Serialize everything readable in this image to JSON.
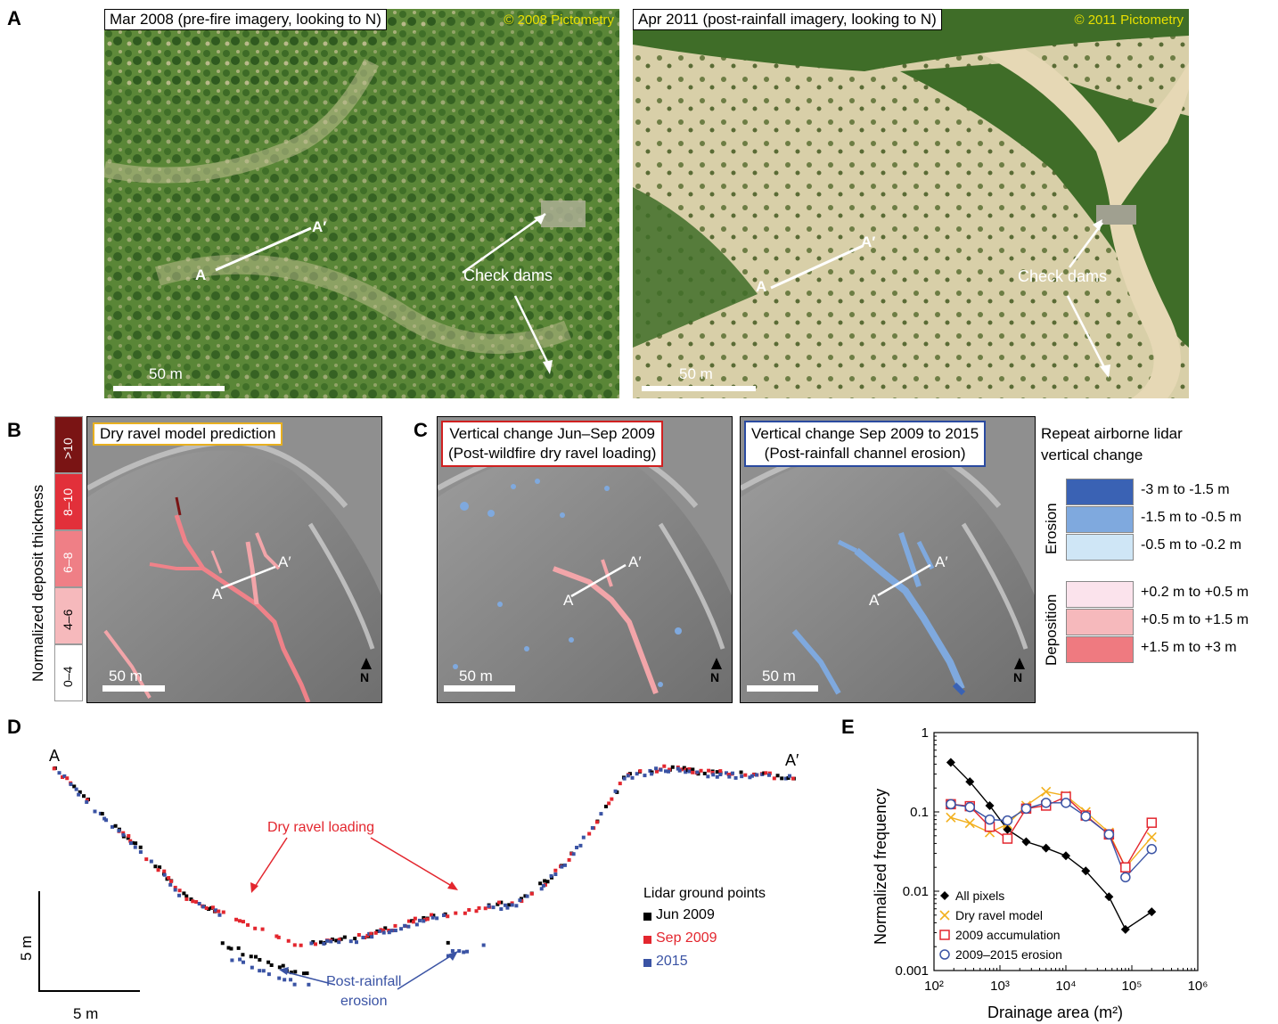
{
  "panel_labels": {
    "a": "A",
    "b": "B",
    "c": "C",
    "d": "D",
    "e": "E"
  },
  "panel_a": {
    "left": {
      "caption": "Mar 2008 (pre-fire imagery, looking to N)",
      "credit": "© 2008 Pictometry",
      "label_a": "A",
      "label_a2": "A′",
      "dams": "Check dams",
      "scale": "50 m"
    },
    "right": {
      "caption": "Apr 2011 (post-rainfall imagery, looking to N)",
      "credit": "© 2011 Pictometry",
      "label_a": "A",
      "label_a2": "A′",
      "dams": "Check dams",
      "scale": "50 m"
    }
  },
  "panel_b": {
    "colorbar_title": "Normalized deposit thickness",
    "colorbar": [
      {
        "label": ">10",
        "color": "#7a1414"
      },
      {
        "label": "8–10",
        "color": "#e2303a"
      },
      {
        "label": "6–8",
        "color": "#ef7f86"
      },
      {
        "label": "4–6",
        "color": "#f6b9bc"
      },
      {
        "label": "0–4",
        "color": "#ffffff"
      }
    ],
    "caption": "Dry ravel model prediction",
    "label_a": "A",
    "label_a2": "A′",
    "scale": "50 m",
    "north": "N"
  },
  "panel_c": {
    "left": {
      "caption_1": "Vertical change Jun–Sep 2009",
      "caption_2": "(Post-wildfire dry ravel loading)",
      "label_a": "A",
      "label_a2": "A′",
      "scale": "50 m",
      "north": "N"
    },
    "right": {
      "caption_1": "Vertical change Sep 2009 to 2015",
      "caption_2": "(Post-rainfall channel erosion)",
      "label_a": "A",
      "label_a2": "A′",
      "scale": "50 m",
      "north": "N"
    },
    "legend": {
      "title_1": "Repeat airborne lidar",
      "title_2": "vertical change",
      "erosion_label": "Erosion",
      "deposition_label": "Deposition",
      "erosion": [
        {
          "label": "-3 m to -1.5 m",
          "color": "#3a62b4"
        },
        {
          "label": "-1.5 m to -0.5 m",
          "color": "#7fa9de"
        },
        {
          "label": "-0.5 m to -0.2 m",
          "color": "#cfe6f6"
        }
      ],
      "deposition": [
        {
          "label": "+0.2 m to +0.5 m",
          "color": "#fbe3ec"
        },
        {
          "label": "+0.5 m to +1.5 m",
          "color": "#f6b9bc"
        },
        {
          "label": "+1.5 m to +3 m",
          "color": "#ef7a80"
        }
      ]
    }
  },
  "panel_d": {
    "label_a": "A",
    "label_a2": "A′",
    "annotation_loading": "Dry ravel loading",
    "annotation_erosion_1": "Post-rainfall",
    "annotation_erosion_2": "erosion",
    "scale_v": "5 m",
    "scale_h": "5 m",
    "legend_title": "Lidar ground points",
    "legend": [
      {
        "label": "Jun 2009",
        "color": "#000000"
      },
      {
        "label": "Sep 2009",
        "color": "#e3262e"
      },
      {
        "label": "2015",
        "color": "#3a53a4"
      }
    ]
  },
  "chart_data": {
    "type": "line",
    "x_scale": "log",
    "y_scale": "log",
    "xlabel": "Drainage area (m²)",
    "ylabel": "Normalized frequency",
    "xlim": [
      100,
      1000000
    ],
    "ylim": [
      0.001,
      1
    ],
    "x_ticks": [
      "10²",
      "10³",
      "10⁴",
      "10⁵",
      "10⁶"
    ],
    "y_ticks": [
      "1",
      "0.1",
      "0.01",
      "0.001"
    ],
    "legend_position": "bottom-left",
    "series": [
      {
        "name": "All pixels",
        "color": "#000000",
        "marker": "diamond",
        "x": [
          180,
          350,
          700,
          1300,
          2500,
          5000,
          10000,
          20000,
          45000,
          80000,
          200000
        ],
        "y": [
          0.42,
          0.24,
          0.12,
          0.06,
          0.042,
          0.035,
          0.028,
          0.018,
          0.0085,
          0.0033,
          0.0055
        ]
      },
      {
        "name": "Dry ravel model",
        "color": "#f2b01e",
        "marker": "x",
        "x": [
          180,
          350,
          700,
          1300,
          2500,
          5000,
          10000,
          20000,
          45000,
          80000,
          200000
        ],
        "y": [
          0.085,
          0.072,
          0.055,
          0.07,
          0.12,
          0.18,
          0.16,
          0.1,
          0.055,
          0.02,
          0.048
        ]
      },
      {
        "name": "2009 accumulation",
        "color": "#e3262e",
        "marker": "square",
        "x": [
          180,
          350,
          700,
          1300,
          2500,
          5000,
          10000,
          20000,
          45000,
          80000,
          200000
        ],
        "y": [
          0.125,
          0.118,
          0.065,
          0.046,
          0.11,
          0.12,
          0.155,
          0.09,
          0.052,
          0.02,
          0.073
        ]
      },
      {
        "name": "2009–2015 erosion",
        "color": "#3a53a4",
        "marker": "circle",
        "x": [
          180,
          350,
          700,
          1300,
          2500,
          5000,
          10000,
          20000,
          45000,
          80000,
          200000
        ],
        "y": [
          0.125,
          0.115,
          0.08,
          0.078,
          0.11,
          0.13,
          0.13,
          0.088,
          0.052,
          0.015,
          0.034
        ]
      }
    ]
  }
}
